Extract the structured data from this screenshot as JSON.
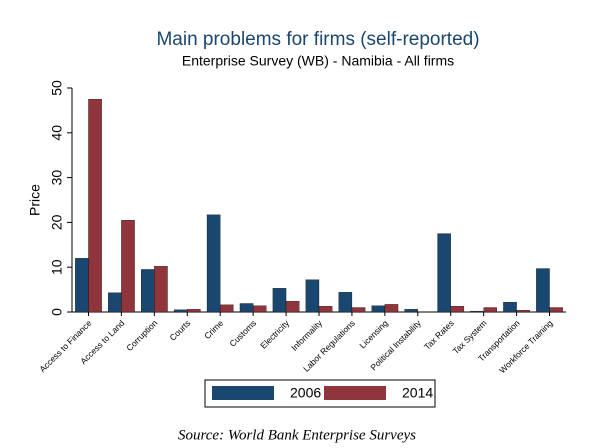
{
  "chart_data": {
    "type": "bar",
    "title": "Main problems for firms (self-reported)",
    "subtitle": "Enterprise Survey (WB) - Namibia - All firms",
    "y_label": "Price",
    "source": "Source: World Bank Enterprise Surveys",
    "categories": [
      "Access to Finance",
      "Access to Land",
      "Corruption",
      "Courts",
      "Crime",
      "Customs",
      "Electricity",
      "Informality",
      "Labor Regulations",
      "Licensing",
      "Political Instability",
      "Tax Rates",
      "Tax System",
      "Transportation",
      "Workforce Training"
    ],
    "series": [
      {
        "name": "2006",
        "color": "#1a476f",
        "values": [
          12,
          4.3,
          9.5,
          0.5,
          21.7,
          1.9,
          5.3,
          7.2,
          4.4,
          1.4,
          0.6,
          17.5,
          0.2,
          2.2,
          9.7
        ]
      },
      {
        "name": "2014",
        "color": "#90353b",
        "values": [
          47.5,
          20.5,
          10.2,
          0.6,
          1.6,
          1.4,
          2.4,
          1.3,
          1.0,
          1.7,
          0,
          1.3,
          1.0,
          0.4,
          1.0
        ]
      }
    ],
    "ylim": [
      0,
      50
    ],
    "yticks": [
      0,
      10,
      20,
      30,
      40,
      50
    ],
    "grid": false,
    "legend": "bottom"
  }
}
